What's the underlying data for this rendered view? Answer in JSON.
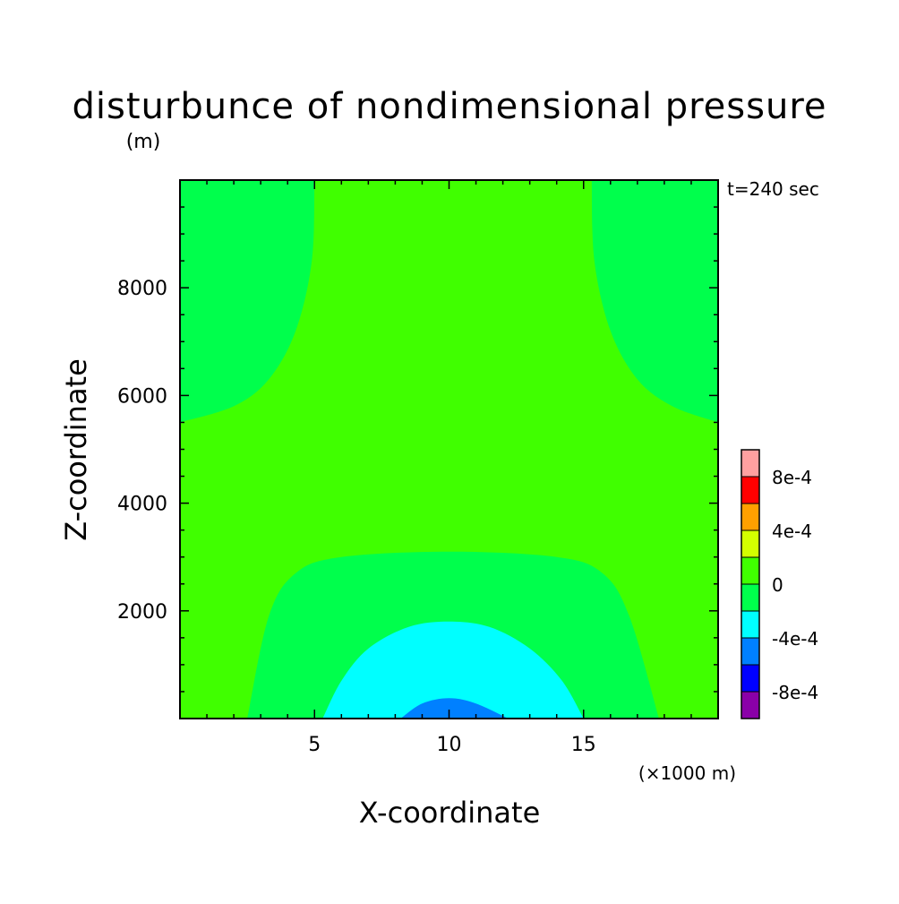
{
  "chart_data": {
    "type": "heatmap",
    "title": "disturbunce of nondimensional pressure",
    "units": "(m)",
    "time_label": "t=240 sec",
    "xlabel": "X-coordinate",
    "ylabel": "Z-coordinate",
    "x_scale_note": "(×1000 m)",
    "xlim": [
      0,
      20
    ],
    "ylim": [
      0,
      10000
    ],
    "x_ticks": [
      5,
      10,
      15
    ],
    "x_tick_labels": [
      "5",
      "10",
      "15"
    ],
    "y_ticks": [
      2000,
      4000,
      6000,
      8000
    ],
    "y_tick_labels": [
      "2000",
      "4000",
      "6000",
      "8000"
    ],
    "grid": false,
    "legend_position": "right",
    "colorbar": {
      "levels": [
        {
          "range": [
            -0.001,
            -0.0008
          ],
          "color": "#8a00a8"
        },
        {
          "range": [
            -0.0008,
            -0.0006
          ],
          "color": "#0000ff"
        },
        {
          "range": [
            -0.0006,
            -0.0004
          ],
          "color": "#0080ff"
        },
        {
          "range": [
            -0.0004,
            -0.0002
          ],
          "color": "#00ffff"
        },
        {
          "range": [
            -0.0002,
            0.0
          ],
          "color": "#00ff4c"
        },
        {
          "range": [
            0.0,
            0.0002
          ],
          "color": "#40ff00"
        },
        {
          "range": [
            0.0002,
            0.0004
          ],
          "color": "#d4ff00"
        },
        {
          "range": [
            0.0004,
            0.0006
          ],
          "color": "#ffa000"
        },
        {
          "range": [
            0.0006,
            0.0008
          ],
          "color": "#ff0000"
        },
        {
          "range": [
            0.0008,
            0.001
          ],
          "color": "#ffa0a0"
        }
      ],
      "labeled_ticks": [
        {
          "value": -0.0008,
          "label": "-8e-4"
        },
        {
          "value": -0.0004,
          "label": "-4e-4"
        },
        {
          "value": 0.0,
          "label": "0"
        },
        {
          "value": 0.0004,
          "label": "4e-4"
        },
        {
          "value": 0.0008,
          "label": "8e-4"
        }
      ]
    },
    "contour_regions": [
      {
        "level": "0 to 2e-4",
        "color": "#40ff00",
        "shape": "background",
        "points": []
      },
      {
        "level": "-2e-4 to 0",
        "color": "#00ff4c",
        "shape": "upper-left lobe",
        "points": [
          [
            0,
            10000
          ],
          [
            5,
            10000
          ],
          [
            4.9,
            8500
          ],
          [
            4.3,
            7200
          ],
          [
            3.3,
            6300
          ],
          [
            2,
            5800
          ],
          [
            0,
            5500
          ]
        ]
      },
      {
        "level": "-2e-4 to 0",
        "color": "#00ff4c",
        "shape": "upper-right lobe",
        "points": [
          [
            20,
            10000
          ],
          [
            15.3,
            10000
          ],
          [
            15.4,
            8500
          ],
          [
            16,
            7200
          ],
          [
            17,
            6300
          ],
          [
            18.3,
            5800
          ],
          [
            20,
            5500
          ]
        ]
      },
      {
        "level": "-2e-4 to 0",
        "color": "#00ff4c",
        "shape": "lower dome",
        "points": [
          [
            2.5,
            0
          ],
          [
            3.3,
            1900
          ],
          [
            4.3,
            2700
          ],
          [
            6,
            3000
          ],
          [
            10,
            3100
          ],
          [
            14,
            3000
          ],
          [
            15.7,
            2700
          ],
          [
            16.7,
            1900
          ],
          [
            17.8,
            0
          ]
        ]
      },
      {
        "level": "-4e-4 to -2e-4",
        "color": "#00ffff",
        "shape": "inner dome",
        "points": [
          [
            5.3,
            0
          ],
          [
            6,
            700
          ],
          [
            7,
            1300
          ],
          [
            8.5,
            1700
          ],
          [
            10,
            1800
          ],
          [
            11.5,
            1700
          ],
          [
            13,
            1300
          ],
          [
            14.2,
            700
          ],
          [
            15,
            0
          ]
        ]
      },
      {
        "level": "-6e-4 to -4e-4",
        "color": "#0080ff",
        "shape": "core",
        "points": [
          [
            8.2,
            0
          ],
          [
            9,
            280
          ],
          [
            10,
            380
          ],
          [
            11,
            280
          ],
          [
            12.2,
            0
          ]
        ]
      }
    ]
  }
}
